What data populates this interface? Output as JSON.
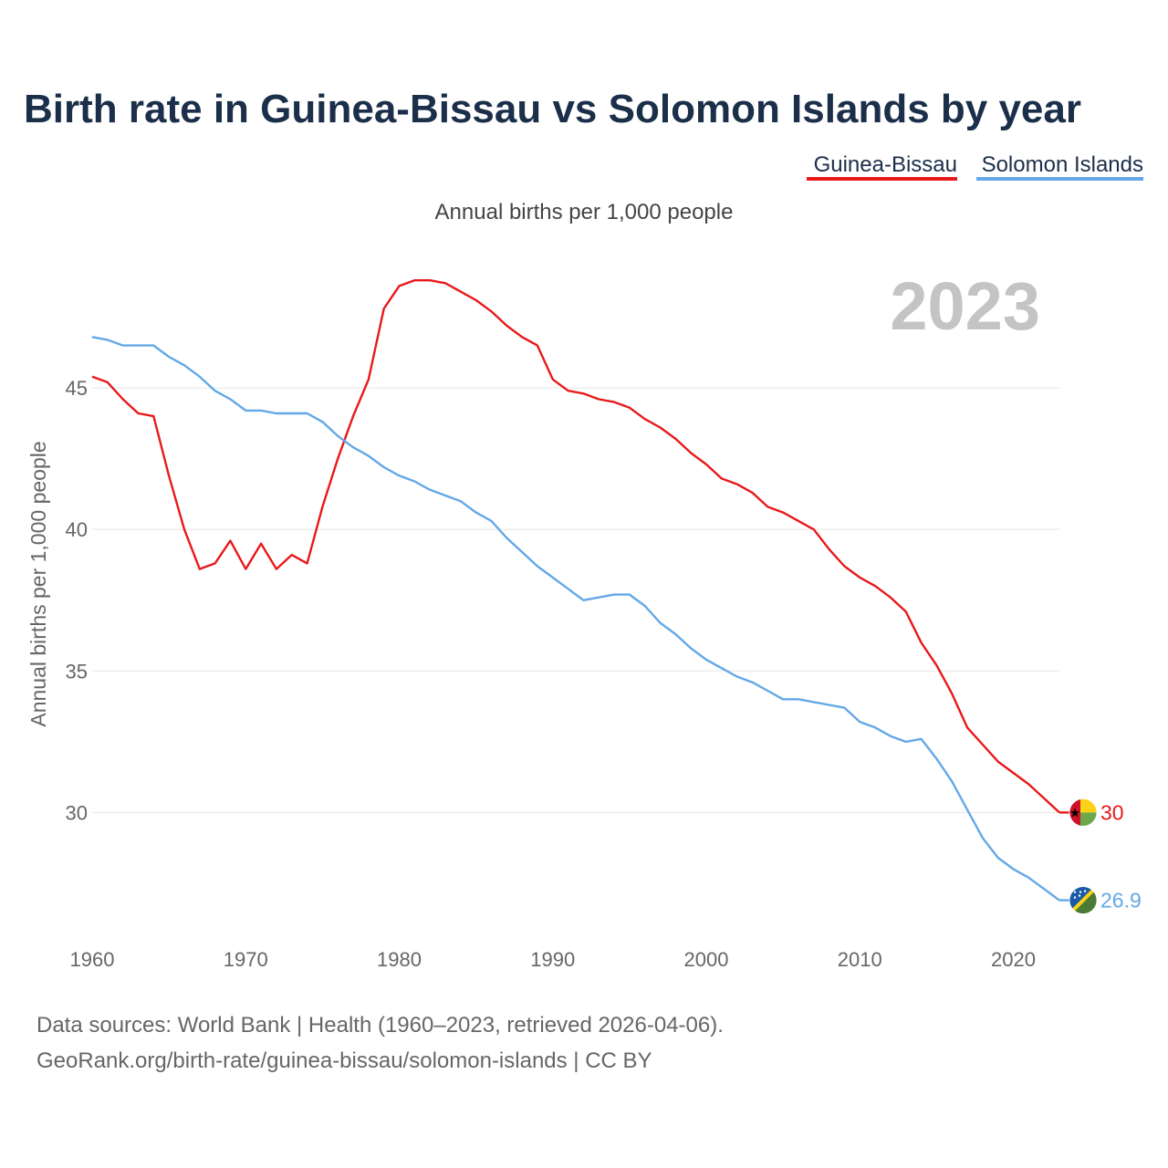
{
  "chart_data": {
    "type": "line",
    "title": "Birth rate in Guinea-Bissau vs Solomon Islands by year",
    "subtitle": "Annual births per 1,000 people",
    "ylabel": "Annual births per 1,000 people",
    "xlabel": "",
    "current_year_label": "2023",
    "xlim": [
      1960,
      2023
    ],
    "ylim": [
      25.5,
      50
    ],
    "y_ticks": [
      30,
      35,
      40,
      45
    ],
    "x_ticks": [
      1960,
      1970,
      1980,
      1990,
      2000,
      2010,
      2020
    ],
    "grid": true,
    "legend_position": "top-right",
    "x": [
      1960,
      1961,
      1962,
      1963,
      1964,
      1965,
      1966,
      1967,
      1968,
      1969,
      1970,
      1971,
      1972,
      1973,
      1974,
      1975,
      1976,
      1977,
      1978,
      1979,
      1980,
      1981,
      1982,
      1983,
      1984,
      1985,
      1986,
      1987,
      1988,
      1989,
      1990,
      1991,
      1992,
      1993,
      1994,
      1995,
      1996,
      1997,
      1998,
      1999,
      2000,
      2001,
      2002,
      2003,
      2004,
      2005,
      2006,
      2007,
      2008,
      2009,
      2010,
      2011,
      2012,
      2013,
      2014,
      2015,
      2016,
      2017,
      2018,
      2019,
      2020,
      2021,
      2022,
      2023
    ],
    "series": [
      {
        "name": "Guinea-Bissau",
        "color": "#e8191b",
        "end_label": "30",
        "flag": "guinea-bissau-flag-icon",
        "values": [
          45.4,
          45.2,
          44.6,
          44.1,
          44.0,
          41.9,
          40.0,
          38.6,
          38.8,
          39.6,
          38.6,
          39.5,
          38.6,
          39.1,
          38.8,
          40.8,
          42.5,
          44.0,
          45.3,
          47.8,
          48.6,
          48.8,
          48.8,
          48.7,
          48.4,
          48.1,
          47.7,
          47.2,
          46.8,
          46.5,
          45.3,
          44.9,
          44.8,
          44.6,
          44.5,
          44.3,
          43.9,
          43.6,
          43.2,
          42.7,
          42.3,
          41.8,
          41.6,
          41.3,
          40.8,
          40.6,
          40.3,
          40.0,
          39.3,
          38.7,
          38.3,
          38.0,
          37.6,
          37.1,
          36.0,
          35.2,
          34.2,
          33.0,
          32.4,
          31.8,
          31.4,
          31.0,
          30.5,
          30.0
        ]
      },
      {
        "name": "Solomon Islands",
        "color": "#63a8e7",
        "end_label": "26.9",
        "flag": "solomon-islands-flag-icon",
        "values": [
          46.8,
          46.7,
          46.5,
          46.5,
          46.5,
          46.1,
          45.8,
          45.4,
          44.9,
          44.6,
          44.2,
          44.2,
          44.1,
          44.1,
          44.1,
          43.8,
          43.3,
          42.9,
          42.6,
          42.2,
          41.9,
          41.7,
          41.4,
          41.2,
          41.0,
          40.6,
          40.3,
          39.7,
          39.2,
          38.7,
          38.3,
          37.9,
          37.5,
          37.6,
          37.7,
          37.7,
          37.3,
          36.7,
          36.3,
          35.8,
          35.4,
          35.1,
          34.8,
          34.6,
          34.3,
          34.0,
          34.0,
          33.9,
          33.8,
          33.7,
          33.2,
          33.0,
          32.7,
          32.5,
          32.6,
          31.9,
          31.1,
          30.1,
          29.1,
          28.4,
          28.0,
          27.7,
          27.3,
          26.9
        ]
      }
    ]
  },
  "footer": {
    "line1": "Data sources: World Bank | Health (1960–2023, retrieved 2026-04-06).",
    "line2": "GeoRank.org/birth-rate/guinea-bissau/solomon-islands | CC BY"
  }
}
